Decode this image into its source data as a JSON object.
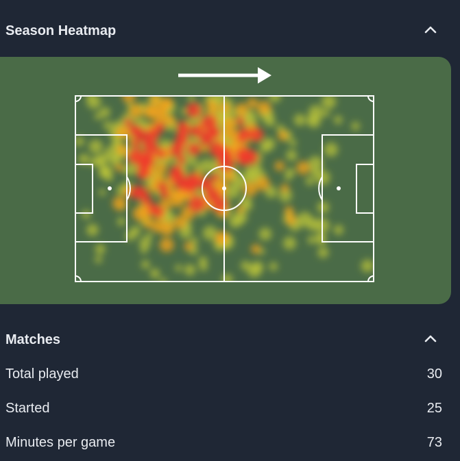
{
  "heatmap_section": {
    "title": "Season Heatmap",
    "collapse_icon": "chevron-up-icon",
    "direction_icon": "arrow-right-icon",
    "colors": {
      "pitch": "#4a6b47",
      "lines": "#ffffff",
      "heat_low": "#b9c33a",
      "heat_mid": "#f2a21a",
      "heat_high": "#ef3b2c"
    }
  },
  "matches_section": {
    "title": "Matches",
    "collapse_icon": "chevron-up-icon",
    "rows": [
      {
        "label": "Total played",
        "value": "30"
      },
      {
        "label": "Started",
        "value": "25"
      },
      {
        "label": "Minutes per game",
        "value": "73"
      }
    ]
  },
  "colors": {
    "background": "#1f2735",
    "text": "#e8ebf0"
  }
}
